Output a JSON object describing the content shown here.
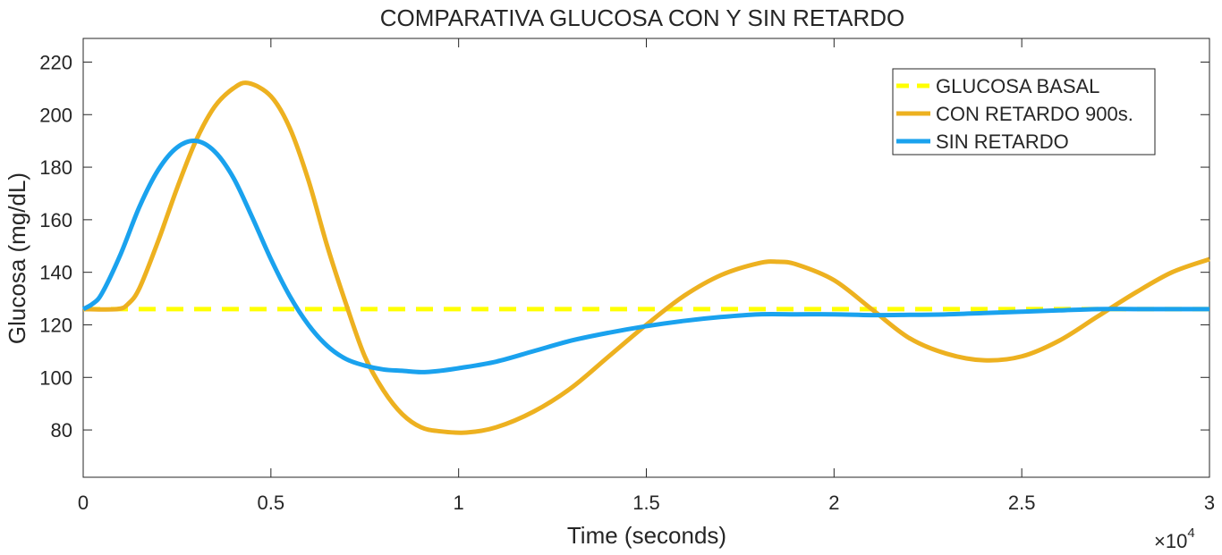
{
  "chart_data": {
    "type": "line",
    "title": "COMPARATIVA GLUCOSA CON Y SIN RETARDO",
    "xlabel": "Time (seconds)",
    "ylabel": "Glucosa (mg/dL)",
    "x_exponent_label": "×10",
    "x_exponent_power": "4",
    "xlim": [
      0,
      30000
    ],
    "ylim": [
      62,
      229
    ],
    "x_ticks": [
      0,
      5000,
      10000,
      15000,
      20000,
      25000,
      30000
    ],
    "x_tick_labels": [
      "0",
      "0.5",
      "1",
      "1.5",
      "2",
      "2.5",
      "3"
    ],
    "y_ticks": [
      80,
      100,
      120,
      140,
      160,
      180,
      200,
      220
    ],
    "y_tick_labels": [
      "80",
      "100",
      "120",
      "140",
      "160",
      "180",
      "200",
      "220"
    ],
    "grid": false,
    "legend_position": "top-right",
    "series": [
      {
        "name": "GLUCOSA BASAL",
        "style": "dashed",
        "color": "#FFFF00",
        "points": [
          [
            0,
            126
          ],
          [
            30000,
            126
          ]
        ]
      },
      {
        "name": "CON RETARDO 900s.",
        "style": "solid",
        "color": "#EDB120",
        "points": [
          [
            0,
            126
          ],
          [
            900,
            126
          ],
          [
            1200,
            128
          ],
          [
            1500,
            134
          ],
          [
            2000,
            152
          ],
          [
            2500,
            172
          ],
          [
            3000,
            190
          ],
          [
            3500,
            203
          ],
          [
            4000,
            210
          ],
          [
            4400,
            212
          ],
          [
            5000,
            207
          ],
          [
            5500,
            195
          ],
          [
            6000,
            175
          ],
          [
            6500,
            150
          ],
          [
            7000,
            128
          ],
          [
            7500,
            108
          ],
          [
            8000,
            95
          ],
          [
            8500,
            86
          ],
          [
            9000,
            81
          ],
          [
            9500,
            79.5
          ],
          [
            10200,
            79
          ],
          [
            11000,
            81
          ],
          [
            12000,
            87
          ],
          [
            13000,
            96
          ],
          [
            14000,
            108
          ],
          [
            15000,
            120
          ],
          [
            16000,
            131
          ],
          [
            17000,
            139
          ],
          [
            18000,
            143.5
          ],
          [
            18500,
            144
          ],
          [
            19000,
            143
          ],
          [
            20000,
            137
          ],
          [
            21000,
            126
          ],
          [
            22000,
            115
          ],
          [
            23000,
            109
          ],
          [
            24000,
            106.5
          ],
          [
            25000,
            108
          ],
          [
            26000,
            114
          ],
          [
            27000,
            123
          ],
          [
            28000,
            132
          ],
          [
            29000,
            140
          ],
          [
            30000,
            145
          ]
        ]
      },
      {
        "name": "SIN RETARDO",
        "style": "solid",
        "color": "#1AA2EE",
        "points": [
          [
            0,
            126
          ],
          [
            250,
            128
          ],
          [
            500,
            132
          ],
          [
            1000,
            147
          ],
          [
            1500,
            165
          ],
          [
            2000,
            179
          ],
          [
            2500,
            187.5
          ],
          [
            3000,
            190
          ],
          [
            3500,
            186
          ],
          [
            4000,
            176
          ],
          [
            4500,
            161
          ],
          [
            5000,
            145
          ],
          [
            5500,
            131
          ],
          [
            6000,
            120
          ],
          [
            6500,
            112
          ],
          [
            7000,
            107
          ],
          [
            7500,
            104.5
          ],
          [
            8000,
            103
          ],
          [
            8500,
            102.5
          ],
          [
            9000,
            102
          ],
          [
            9500,
            102.5
          ],
          [
            10000,
            103.5
          ],
          [
            11000,
            106
          ],
          [
            12000,
            110
          ],
          [
            13000,
            114
          ],
          [
            14000,
            117
          ],
          [
            15000,
            119.5
          ],
          [
            16000,
            121.5
          ],
          [
            17000,
            123
          ],
          [
            18000,
            124
          ],
          [
            19000,
            124
          ],
          [
            20000,
            124
          ],
          [
            21000,
            123.7
          ],
          [
            22000,
            123.8
          ],
          [
            23000,
            124
          ],
          [
            24000,
            124.5
          ],
          [
            25000,
            125
          ],
          [
            26000,
            125.5
          ],
          [
            27000,
            126
          ],
          [
            28000,
            126
          ],
          [
            29000,
            126
          ],
          [
            30000,
            126
          ]
        ]
      }
    ]
  }
}
